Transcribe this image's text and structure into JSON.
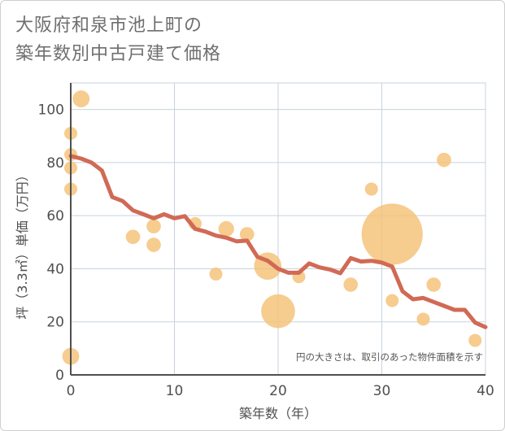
{
  "title_line1": "大阪府和泉市池上町の",
  "title_line2": "築年数別中古戸建て価格",
  "chart_data": {
    "type": "scatter",
    "title": "大阪府和泉市池上町の築年数別中古戸建て価格",
    "xlabel": "築年数（年）",
    "ylabel": "坪（3.3㎡）単価（万円）",
    "xlim": [
      0,
      40
    ],
    "ylim": [
      0,
      110
    ],
    "xticks": [
      "0",
      "10",
      "20",
      "30",
      "40"
    ],
    "yticks": [
      "0",
      "20",
      "40",
      "60",
      "80",
      "100"
    ],
    "xtick_values": [
      0,
      10,
      20,
      30,
      40
    ],
    "ytick_values": [
      0,
      20,
      40,
      60,
      80,
      100
    ],
    "grid": true,
    "annotation": "円の大きさは、取引のあった物件面積を示す",
    "colors": {
      "points": "#f5c37b",
      "line": "#d16a55",
      "grid": "#c8d3dc",
      "axis": "#4f4f4f"
    },
    "points": [
      {
        "x": 0,
        "y": 7,
        "size": 1.3
      },
      {
        "x": 0,
        "y": 70,
        "size": 1
      },
      {
        "x": 0,
        "y": 78,
        "size": 1
      },
      {
        "x": 0,
        "y": 83,
        "size": 1
      },
      {
        "x": 0,
        "y": 91,
        "size": 1
      },
      {
        "x": 1,
        "y": 104,
        "size": 1.3
      },
      {
        "x": 6,
        "y": 52,
        "size": 1.1
      },
      {
        "x": 8,
        "y": 56,
        "size": 1.1
      },
      {
        "x": 8,
        "y": 49,
        "size": 1.1
      },
      {
        "x": 12,
        "y": 57,
        "size": 1
      },
      {
        "x": 14,
        "y": 38,
        "size": 1
      },
      {
        "x": 15,
        "y": 55,
        "size": 1.2
      },
      {
        "x": 17,
        "y": 53,
        "size": 1.1
      },
      {
        "x": 19,
        "y": 41,
        "size": 2.1
      },
      {
        "x": 20,
        "y": 24,
        "size": 2.6
      },
      {
        "x": 22,
        "y": 37,
        "size": 1
      },
      {
        "x": 27,
        "y": 34,
        "size": 1.1
      },
      {
        "x": 29,
        "y": 70,
        "size": 1
      },
      {
        "x": 31,
        "y": 28,
        "size": 1
      },
      {
        "x": 31,
        "y": 53,
        "size": 4.7
      },
      {
        "x": 34,
        "y": 21,
        "size": 1
      },
      {
        "x": 35,
        "y": 34,
        "size": 1.1
      },
      {
        "x": 36,
        "y": 81,
        "size": 1.1
      },
      {
        "x": 39,
        "y": 13,
        "size": 1
      }
    ],
    "trend": {
      "x": [
        0,
        1,
        2,
        3,
        4,
        5,
        6,
        7,
        8,
        9,
        10,
        11,
        12,
        13,
        14,
        15,
        16,
        17,
        18,
        19,
        20,
        21,
        22,
        23,
        24,
        25,
        26,
        27,
        28,
        29,
        30,
        31,
        32,
        33,
        34,
        35,
        36,
        37,
        38,
        39,
        40
      ],
      "y": [
        82.5,
        81.5,
        80,
        77,
        67,
        65.5,
        62,
        60.5,
        59,
        60.5,
        59,
        59.8,
        55,
        54,
        52.5,
        51.7,
        50.3,
        50.6,
        44.5,
        43,
        40,
        38.5,
        38.5,
        42,
        40.5,
        39.7,
        38.3,
        44,
        42.7,
        43,
        42.3,
        40.8,
        31.5,
        28.5,
        29,
        27.5,
        26,
        24.5,
        24.5,
        19.7,
        18
      ]
    }
  }
}
